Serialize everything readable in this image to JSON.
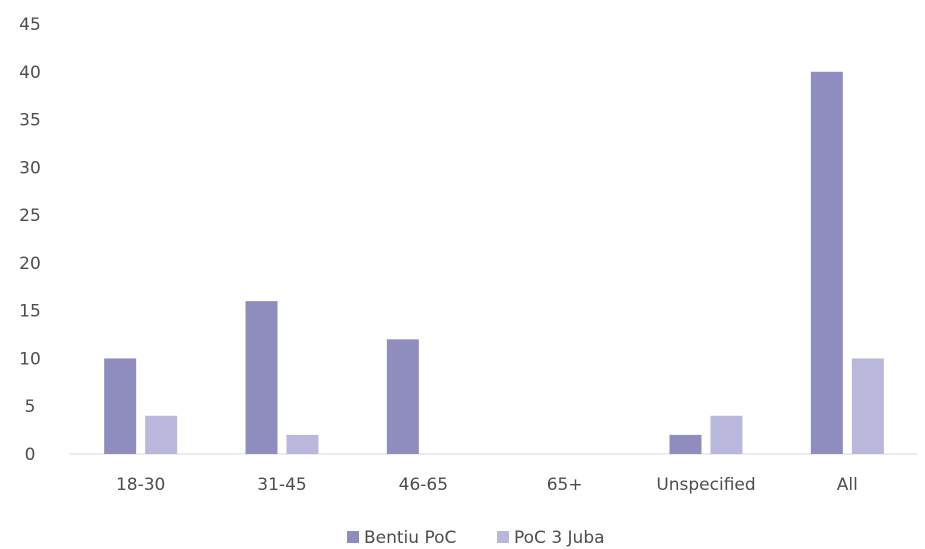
{
  "chart_data": {
    "type": "bar",
    "categories": [
      "18-30",
      "31-45",
      "46-65",
      "65+",
      "Unspecified",
      "All"
    ],
    "series": [
      {
        "name": "Bentiu PoC",
        "values": [
          10,
          16,
          12,
          0,
          2,
          40
        ],
        "color": "#8e8dbe"
      },
      {
        "name": "PoC 3 Juba",
        "values": [
          4,
          2,
          0,
          0,
          4,
          10
        ],
        "color": "#b9b8dc"
      }
    ],
    "ylim": [
      0,
      45
    ],
    "yticks": [
      0,
      5,
      10,
      15,
      20,
      25,
      30,
      35,
      40,
      45
    ],
    "grid": false,
    "legend": "bottom"
  }
}
